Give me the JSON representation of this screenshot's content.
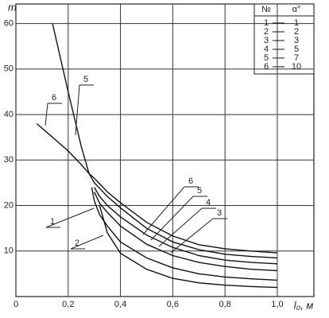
{
  "chart_data": {
    "type": "line",
    "y_label": "m",
    "x_label": "l₀, м",
    "x": [
      0.08,
      0.14,
      0.2,
      0.25,
      0.28,
      0.29,
      0.3,
      0.32,
      0.35,
      0.4,
      0.5,
      0.6,
      0.7,
      0.8,
      0.9,
      1.0
    ],
    "series": [
      {
        "name": "1",
        "alpha": "1",
        "color": "#111",
        "values": [
          null,
          null,
          null,
          null,
          null,
          24,
          21,
          18,
          15.5,
          12,
          8.5,
          6.3,
          5,
          4.3,
          3.9,
          3.6
        ]
      },
      {
        "name": "2",
        "alpha": "2",
        "color": "#111",
        "values": [
          null,
          null,
          null,
          null,
          null,
          null,
          null,
          20,
          14,
          9.5,
          6,
          4,
          3,
          2.5,
          2.2,
          2
        ]
      },
      {
        "name": "3",
        "alpha": "3",
        "color": "#111",
        "values": [
          null,
          null,
          null,
          null,
          null,
          null,
          23,
          20.5,
          18.5,
          15.5,
          11.5,
          9,
          7.5,
          6.6,
          6,
          5.7
        ]
      },
      {
        "name": "4",
        "alpha": "5",
        "color": "#111",
        "values": [
          null,
          null,
          null,
          null,
          null,
          null,
          24,
          22,
          20,
          17.5,
          13.5,
          10.8,
          9,
          8,
          7.5,
          7.2
        ]
      },
      {
        "name": "5",
        "alpha": "7",
        "color": "#111",
        "values": [
          null,
          60,
          45,
          33,
          27,
          26,
          25,
          23.8,
          22,
          19.5,
          15,
          12,
          10.3,
          9.3,
          8.8,
          8.5
        ]
      },
      {
        "name": "6",
        "alpha": "10",
        "color": "#111",
        "values": [
          38,
          35,
          32,
          29,
          27,
          26.5,
          26,
          24.8,
          23,
          20.6,
          16.3,
          13.3,
          11.4,
          10.5,
          10,
          9.6
        ]
      }
    ],
    "legend_headers": [
      "№",
      "α°"
    ],
    "xlim": [
      0,
      1.14
    ],
    "ylim": [
      0,
      64.3
    ],
    "xticks": [
      0,
      {
        "value": 0.2,
        "label": "0,2"
      },
      {
        "value": 0.4,
        "label": "0,4"
      },
      {
        "value": 0.6,
        "label": "0,6"
      },
      {
        "value": 0.8,
        "label": "0,8"
      },
      {
        "value": 1.0,
        "label": "1,0"
      }
    ],
    "yticks": [
      10,
      20,
      30,
      40,
      50,
      60
    ],
    "grid": true
  }
}
